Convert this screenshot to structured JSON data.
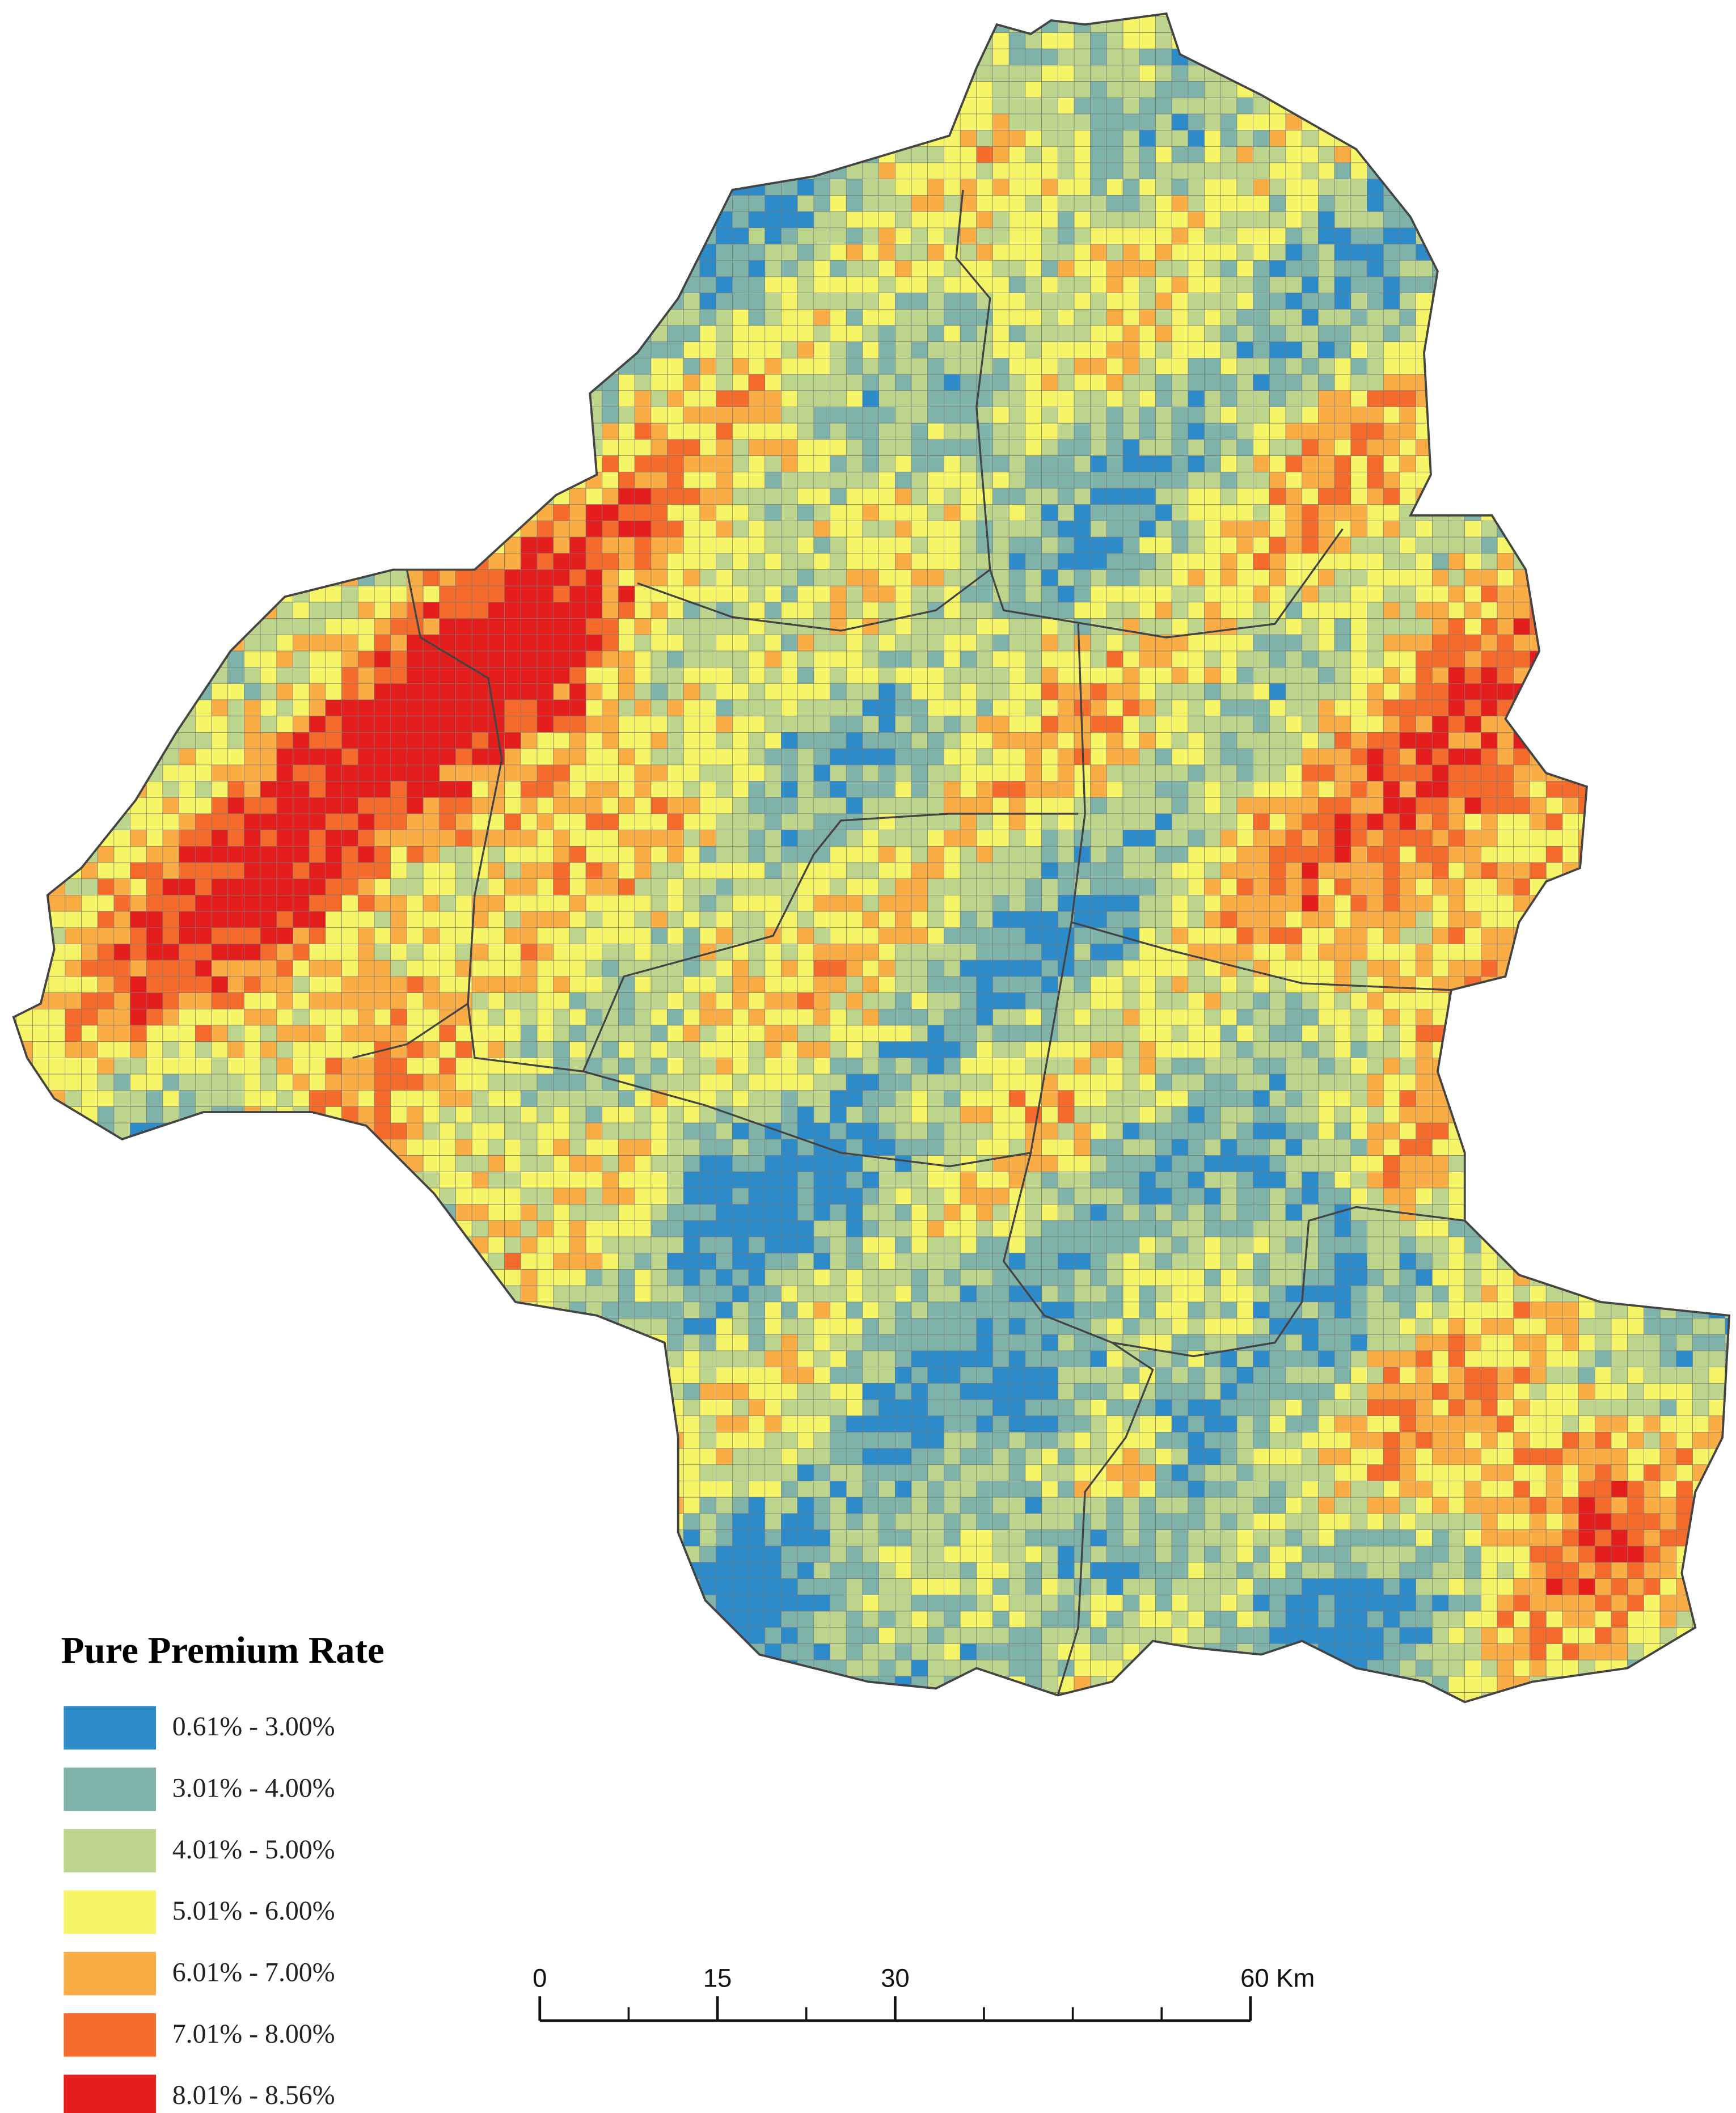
{
  "legend": {
    "title": "Pure Premium Rate",
    "items": [
      {
        "label": "0.61% - 3.00%",
        "color": "#2e8bc9"
      },
      {
        "label": "3.01% - 4.00%",
        "color": "#7fb3aa"
      },
      {
        "label": "4.01% - 5.00%",
        "color": "#bcd48c"
      },
      {
        "label": "5.01% - 6.00%",
        "color": "#f6f567"
      },
      {
        "label": "6.01% - 7.00%",
        "color": "#fbad45"
      },
      {
        "label": "7.01% - 8.00%",
        "color": "#f46b2c"
      },
      {
        "label": "8.01% - 8.56%",
        "color": "#e41d1d"
      }
    ]
  },
  "scale_bar": {
    "range": [
      0,
      60
    ],
    "ticks": [
      0,
      15,
      30,
      {
        "value": 60,
        "label": "60 Km"
      }
    ]
  }
}
